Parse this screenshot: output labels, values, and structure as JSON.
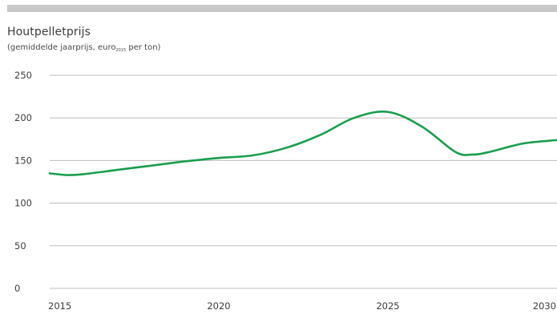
{
  "header": {
    "title": "Houtpelletprijs",
    "subtitle_prefix": "(gemiddelde jaarprijs,  euro",
    "subtitle_sub": "2015",
    "subtitle_suffix": " per ton)"
  },
  "colors": {
    "line": "#1a9e4e",
    "grid": "#bdbdbd",
    "top_bar": "#c8c8c8"
  },
  "chart_data": {
    "type": "line",
    "title": "Houtpelletprijs",
    "subtitle": "(gemiddelde jaarprijs, euro2015 per ton)",
    "xlabel": "",
    "ylabel": "",
    "xlim": [
      2015,
      2030
    ],
    "ylim": [
      0,
      250
    ],
    "yticks": [
      0,
      50,
      100,
      150,
      200,
      250
    ],
    "xticks": [
      2015,
      2020,
      2025,
      2030
    ],
    "grid": true,
    "series": [
      {
        "x": [
          2015,
          2015.5,
          2016,
          2017,
          2018,
          2019,
          2020,
          2021,
          2022,
          2023,
          2024,
          2025,
          2026,
          2027,
          2027.5,
          2028,
          2029,
          2030
        ],
        "values": [
          135,
          133,
          134,
          139,
          144,
          149,
          153,
          156,
          165,
          180,
          200,
          207,
          190,
          160,
          157,
          160,
          170,
          174
        ]
      }
    ]
  }
}
